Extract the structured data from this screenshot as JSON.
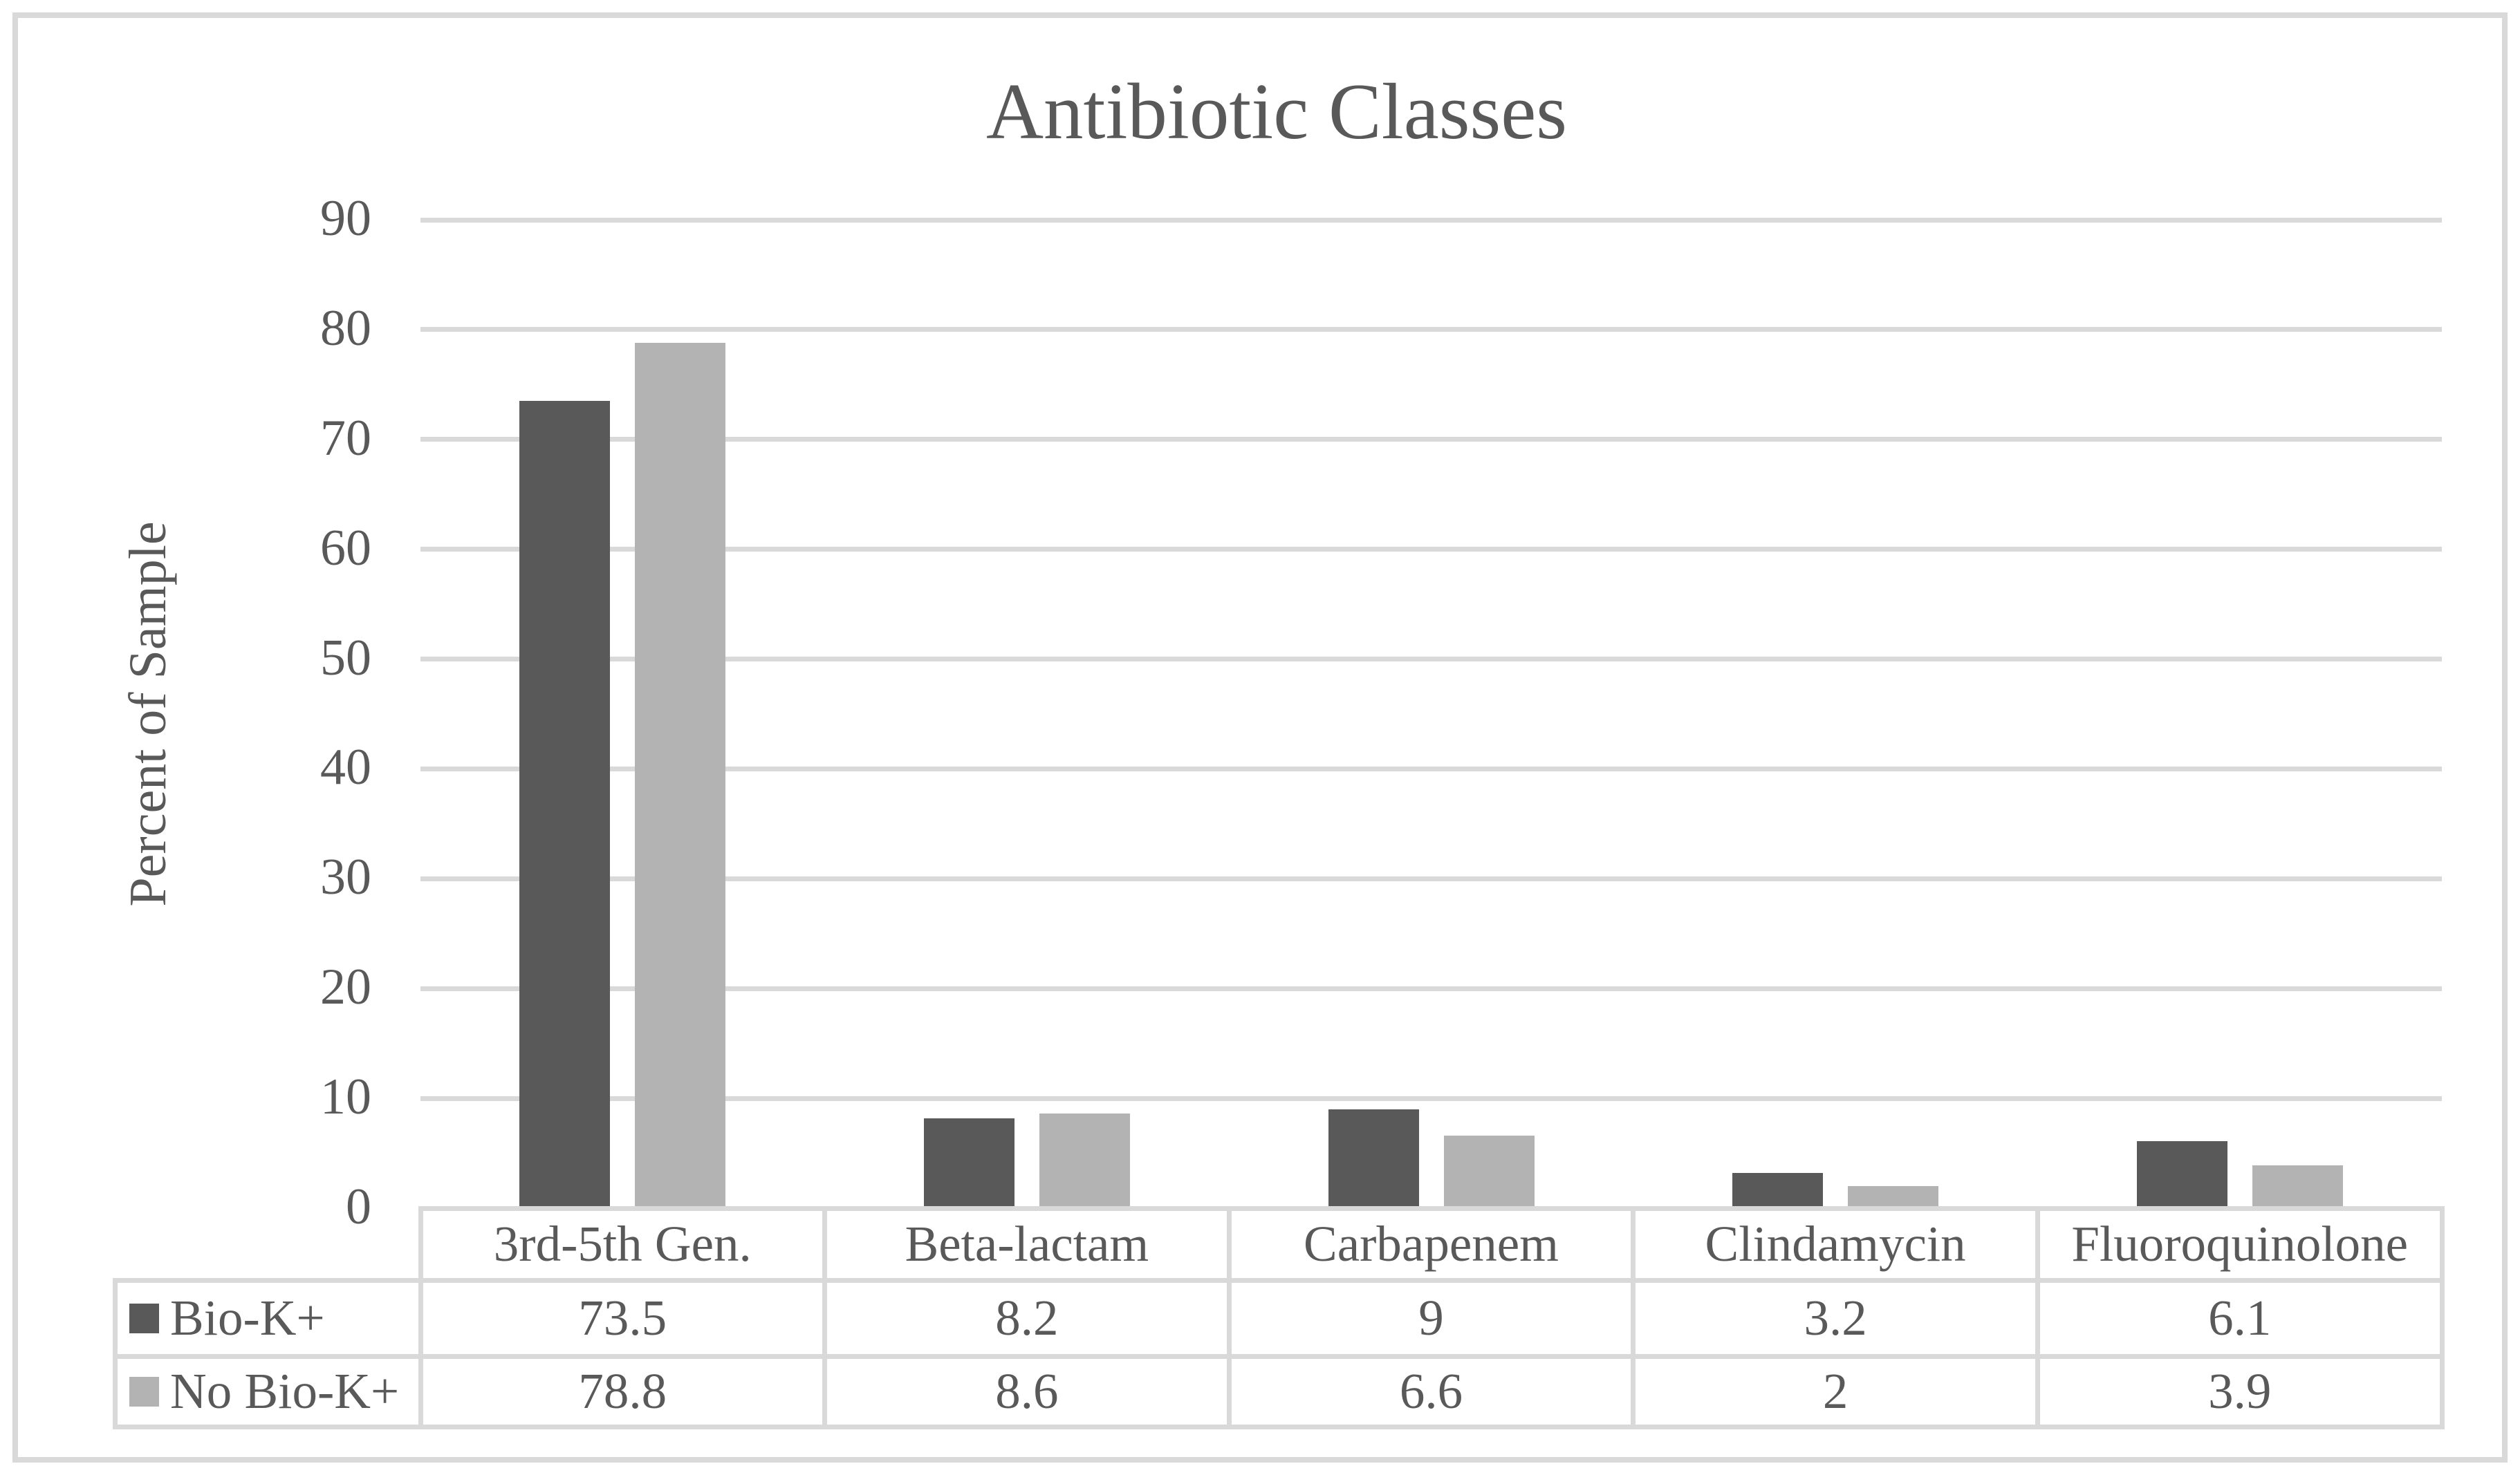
{
  "chart_data": {
    "type": "bar",
    "title": "Antibiotic Classes",
    "xlabel": "",
    "ylabel": "Percent of Sample",
    "categories": [
      "3rd-5th Gen.",
      "Beta-lactam",
      "Carbapenem",
      "Clindamycin",
      "Fluoroquinolone"
    ],
    "series": [
      {
        "name": "Bio-K+",
        "color": "#595959",
        "values": [
          73.5,
          8.2,
          9,
          3.2,
          6.1
        ]
      },
      {
        "name": "No Bio-K+",
        "color": "#b3b3b3",
        "values": [
          78.8,
          8.6,
          6.6,
          2,
          3.9
        ]
      }
    ],
    "y_axis": {
      "min": 0,
      "max": 90,
      "tick_step": 10,
      "ticks": [
        0,
        10,
        20,
        30,
        40,
        50,
        60,
        70,
        80,
        90
      ]
    },
    "grid": true,
    "legend_position": "table-left-column",
    "data_table_shown": true,
    "colors": {
      "background": "#ffffff",
      "gridline": "#d9d9d9",
      "table_border": "#d9d9d9",
      "text": "#595959",
      "outer_border": "#d9d9d9"
    }
  }
}
